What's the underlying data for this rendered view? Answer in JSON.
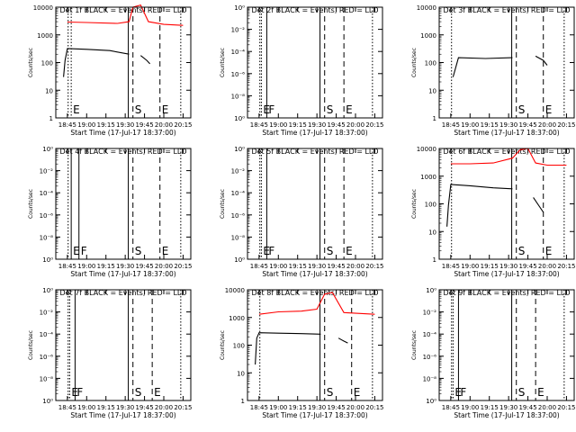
{
  "chart_data": [
    {
      "type": "line",
      "title": "Det 1f BLACK = Events, RED = LLD",
      "xlabel": "Start Time (17-Jul-17 18:37:00)",
      "ylabel": "Counts/sec",
      "scale": "log",
      "yticks": [
        "1",
        "10",
        "100",
        "1000",
        "10000"
      ],
      "xticks": [
        "18:45",
        "19:00",
        "19:15",
        "19:30",
        "19:45",
        "20:00",
        "20:15"
      ],
      "markers": [
        {
          "label": "E",
          "t": 18.8,
          "style": "dotted"
        },
        {
          "label": "S",
          "t": 19.6,
          "style": "dashed"
        },
        {
          "label": "E",
          "t": 19.95,
          "style": "dashed"
        }
      ],
      "series": [
        {
          "color": "#000000",
          "points": [
            [
              18.7,
              30
            ],
            [
              18.72,
              120
            ],
            [
              18.75,
              320
            ],
            [
              19.0,
              300
            ],
            [
              19.3,
              270
            ],
            [
              19.55,
              200
            ]
          ]
        },
        {
          "color": "#000000",
          "points": [
            [
              19.7,
              180
            ],
            [
              19.78,
              120
            ],
            [
              19.82,
              90
            ]
          ]
        },
        {
          "color": "#ff0000",
          "points": [
            [
              18.75,
              2900
            ],
            [
              19.0,
              2800
            ],
            [
              19.4,
              2600
            ],
            [
              19.55,
              3000
            ],
            [
              19.6,
              10000
            ],
            [
              19.7,
              12000
            ],
            [
              19.8,
              3000
            ],
            [
              20.0,
              2400
            ],
            [
              20.25,
              2200
            ]
          ]
        }
      ]
    },
    {
      "type": "line",
      "title": "Det 2f BLACK = Events, RED = LLD",
      "xlabel": "Start Time (17-Jul-17 18:37:00)",
      "ylabel": "Counts/sec",
      "scale": "log",
      "yticks": [
        "10⁰",
        "10⁻⁸",
        "10⁻⁶",
        "10⁻⁴",
        "10⁻²",
        "10⁰"
      ],
      "xticks": [
        "18:45",
        "19:00",
        "19:15",
        "19:30",
        "19:45",
        "20:00",
        "20:15"
      ],
      "markers": [
        {
          "label": "E",
          "t": 18.78,
          "style": "dotted"
        },
        {
          "label": "F",
          "t": 18.85,
          "style": "solid"
        },
        {
          "label": "S",
          "t": 19.6,
          "style": "dashed"
        },
        {
          "label": "E",
          "t": 19.85,
          "style": "dashed"
        }
      ],
      "series": []
    },
    {
      "type": "line",
      "title": "Det 3f BLACK = Events, RED = LLD",
      "xlabel": "Start Time (17-Jul-17 18:37:00)",
      "ylabel": "Counts/sec",
      "scale": "log",
      "yticks": [
        "1",
        "10",
        "100",
        "1000",
        "10000"
      ],
      "xticks": [
        "18:45",
        "19:00",
        "19:15",
        "19:30",
        "19:45",
        "20:00",
        "20:15"
      ],
      "markers": [
        {
          "label": "S",
          "t": 19.6,
          "style": "dashed"
        },
        {
          "label": "E",
          "t": 19.95,
          "style": "dashed"
        }
      ],
      "series": [
        {
          "color": "#000000",
          "points": [
            [
              18.78,
              30
            ],
            [
              18.85,
              150
            ],
            [
              19.2,
              140
            ],
            [
              19.55,
              150
            ]
          ]
        },
        {
          "color": "#000000",
          "points": [
            [
              19.85,
              170
            ],
            [
              19.95,
              120
            ],
            [
              20.0,
              80
            ]
          ]
        }
      ]
    },
    {
      "type": "line",
      "title": "Det 4f BLACK = Events, RED = LLD",
      "xlabel": "Start Time (17-Jul-17 18:37:00)",
      "ylabel": "Counts/sec",
      "scale": "log",
      "yticks": [
        "10⁰",
        "10⁻⁸",
        "10⁻⁶",
        "10⁻⁴",
        "10⁻²",
        "10⁰"
      ],
      "xticks": [
        "18:45",
        "19:00",
        "19:15",
        "19:30",
        "19:45",
        "20:00",
        "20:15"
      ],
      "markers": [
        {
          "label": "E",
          "t": 18.8,
          "style": "solid"
        },
        {
          "label": "F",
          "t": 18.9,
          "style": "solid"
        },
        {
          "label": "S",
          "t": 19.6,
          "style": "dashed"
        },
        {
          "label": "E",
          "t": 19.95,
          "style": "dashed"
        }
      ],
      "series": []
    },
    {
      "type": "line",
      "title": "Det 5f BLACK = Events, RED = LLD",
      "xlabel": "Start Time (17-Jul-17 18:37:00)",
      "ylabel": "Counts/sec",
      "scale": "log",
      "yticks": [
        "10⁰",
        "10⁻⁸",
        "10⁻⁶",
        "10⁻⁴",
        "10⁻²",
        "10⁰"
      ],
      "xticks": [
        "18:45",
        "19:00",
        "19:15",
        "19:30",
        "19:45",
        "20:00",
        "20:15"
      ],
      "markers": [
        {
          "label": "E",
          "t": 18.78,
          "style": "dotted"
        },
        {
          "label": "F",
          "t": 18.85,
          "style": "solid"
        },
        {
          "label": "S",
          "t": 19.6,
          "style": "dashed"
        },
        {
          "label": "E",
          "t": 19.85,
          "style": "dashed"
        }
      ],
      "series": []
    },
    {
      "type": "line",
      "title": "Det 6f BLACK = Events, RED = LLD",
      "xlabel": "Start Time (17-Jul-17 18:37:00)",
      "ylabel": "Counts/sec",
      "scale": "log",
      "yticks": [
        "1",
        "10",
        "100",
        "1000",
        "10000"
      ],
      "xticks": [
        "18:45",
        "19:00",
        "19:15",
        "19:30",
        "19:45",
        "20:00",
        "20:15"
      ],
      "markers": [
        {
          "label": "S",
          "t": 19.6,
          "style": "dashed"
        },
        {
          "label": "E",
          "t": 19.95,
          "style": "dashed"
        }
      ],
      "series": [
        {
          "color": "#000000",
          "points": [
            [
              18.7,
              15
            ],
            [
              18.72,
              90
            ],
            [
              18.75,
              500
            ],
            [
              19.0,
              450
            ],
            [
              19.3,
              380
            ],
            [
              19.55,
              350
            ]
          ]
        },
        {
          "color": "#000000",
          "points": [
            [
              19.82,
              170
            ],
            [
              19.9,
              80
            ],
            [
              19.95,
              50
            ]
          ]
        },
        {
          "color": "#ff0000",
          "points": [
            [
              18.75,
              2800
            ],
            [
              19.0,
              2800
            ],
            [
              19.3,
              3000
            ],
            [
              19.55,
              4500
            ],
            [
              19.65,
              9000
            ],
            [
              19.75,
              10000
            ],
            [
              19.85,
              3000
            ],
            [
              20.0,
              2500
            ],
            [
              20.25,
              2500
            ]
          ]
        }
      ]
    },
    {
      "type": "line",
      "title": "Det 7f BLACK = Events, RED = LLD",
      "xlabel": "Start Time (17-Jul-17 18:37:00)",
      "ylabel": "Counts/sec",
      "scale": "log",
      "yticks": [
        "10⁰",
        "10⁻⁸",
        "10⁻⁶",
        "10⁻⁴",
        "10⁻²",
        "10⁰"
      ],
      "xticks": [
        "18:45",
        "19:00",
        "19:15",
        "19:30",
        "19:45",
        "20:00",
        "20:15"
      ],
      "markers": [
        {
          "label": "E",
          "t": 18.78,
          "style": "dotted"
        },
        {
          "label": "F",
          "t": 18.85,
          "style": "solid"
        },
        {
          "label": "S",
          "t": 19.6,
          "style": "dashed"
        },
        {
          "label": "E",
          "t": 19.85,
          "style": "dashed"
        }
      ],
      "series": []
    },
    {
      "type": "line",
      "title": "Det 8f BLACK = Events, RED = LLD",
      "xlabel": "Start Time (17-Jul-17 18:37:00)",
      "ylabel": "Counts/sec",
      "scale": "log",
      "yticks": [
        "1",
        "10",
        "100",
        "1000",
        "10000"
      ],
      "xticks": [
        "18:45",
        "19:00",
        "19:15",
        "19:30",
        "19:45",
        "20:00",
        "20:15"
      ],
      "markers": [
        {
          "label": "S",
          "t": 19.6,
          "style": "dashed"
        },
        {
          "label": "E",
          "t": 19.95,
          "style": "dashed"
        }
      ],
      "series": [
        {
          "color": "#000000",
          "points": [
            [
              18.7,
              20
            ],
            [
              18.72,
              180
            ],
            [
              18.75,
              280
            ],
            [
              19.0,
              270
            ],
            [
              19.3,
              260
            ],
            [
              19.55,
              250
            ]
          ]
        },
        {
          "color": "#000000",
          "points": [
            [
              19.78,
              180
            ],
            [
              19.85,
              140
            ],
            [
              19.9,
              120
            ]
          ]
        },
        {
          "color": "#ff0000",
          "points": [
            [
              18.75,
              1300
            ],
            [
              19.0,
              1600
            ],
            [
              19.3,
              1700
            ],
            [
              19.5,
              2000
            ],
            [
              19.6,
              7000
            ],
            [
              19.7,
              8000
            ],
            [
              19.85,
              1500
            ],
            [
              20.25,
              1300
            ]
          ]
        }
      ]
    },
    {
      "type": "line",
      "title": "Det 9f BLACK = Events, RED = LLD",
      "xlabel": "Start Time (17-Jul-17 18:37:00)",
      "ylabel": "Counts/sec",
      "scale": "log",
      "yticks": [
        "10⁰",
        "10⁻⁸",
        "10⁻⁶",
        "10⁻⁴",
        "10⁻²",
        "10⁰"
      ],
      "xticks": [
        "18:45",
        "19:00",
        "19:15",
        "19:30",
        "19:45",
        "20:00",
        "20:15"
      ],
      "markers": [
        {
          "label": "E",
          "t": 18.78,
          "style": "dotted"
        },
        {
          "label": "F",
          "t": 18.85,
          "style": "solid"
        },
        {
          "label": "S",
          "t": 19.6,
          "style": "dashed"
        },
        {
          "label": "E",
          "t": 19.85,
          "style": "dashed"
        }
      ],
      "series": []
    }
  ]
}
